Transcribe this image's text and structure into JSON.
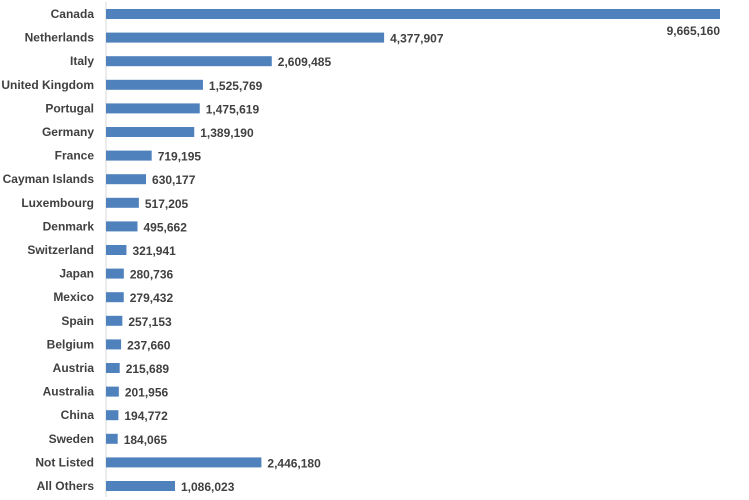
{
  "chart_data": {
    "type": "bar",
    "orientation": "horizontal",
    "categories": [
      "Canada",
      "Netherlands",
      "Italy",
      "United Kingdom",
      "Portugal",
      "Germany",
      "France",
      "Cayman Islands",
      "Luxembourg",
      "Denmark",
      "Switzerland",
      "Japan",
      "Mexico",
      "Spain",
      "Belgium",
      "Austria",
      "Australia",
      "China",
      "Sweden",
      "Not Listed",
      "All Others"
    ],
    "values": [
      9665160,
      4377907,
      2609485,
      1525769,
      1475619,
      1389190,
      719195,
      630177,
      517205,
      495662,
      321941,
      280736,
      279432,
      257153,
      237660,
      215689,
      201956,
      194772,
      184065,
      2446180,
      1086023
    ],
    "value_labels": [
      "9,665,160",
      "4,377,907",
      "2,609,485",
      "1,525,769",
      "1,475,619",
      "1,389,190",
      "719,195",
      "630,177",
      "517,205",
      "495,662",
      "321,941",
      "280,736",
      "279,432",
      "257,153",
      "237,660",
      "215,689",
      "201,956",
      "194,772",
      "184,065",
      "2,446,180",
      "1,086,023"
    ],
    "bar_color": "#4f81bd",
    "grid": false,
    "legend": "none"
  }
}
